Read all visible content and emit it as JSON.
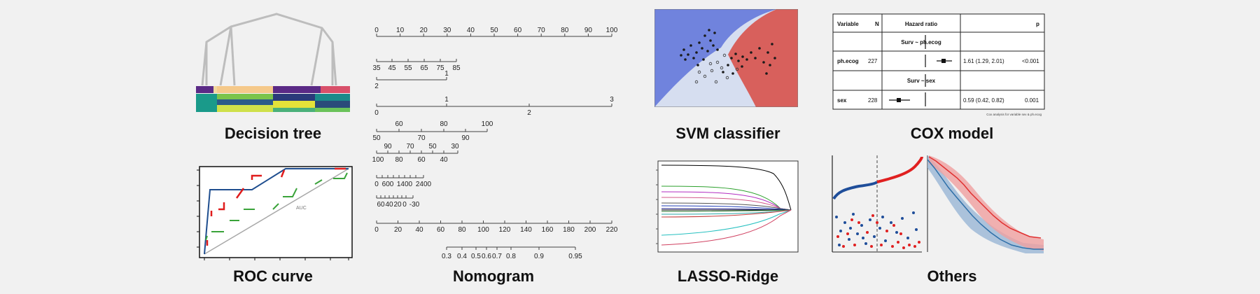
{
  "captions": {
    "decision_tree": "Decision tree",
    "nomogram": "Nomogram",
    "svm": "SVM classifier",
    "cox": "COX model",
    "roc": "ROC curve",
    "lasso": "LASSO-Ridge",
    "others": "Others"
  },
  "nomogram": {
    "scales": [
      {
        "labels": [
          "0",
          "10",
          "20",
          "30",
          "40",
          "50",
          "60",
          "70",
          "80",
          "90",
          "100"
        ]
      },
      {
        "labels": [
          "35",
          "45",
          "55",
          "65",
          "75",
          "85"
        ]
      },
      {
        "labels": [
          "1",
          "2"
        ]
      },
      {
        "labels": [
          "1",
          "3",
          "0",
          "2"
        ]
      },
      {
        "labels": [
          "60",
          "80",
          "100",
          "50",
          "70",
          "90"
        ]
      },
      {
        "labels": [
          "90",
          "70",
          "50",
          "30",
          "100",
          "80",
          "60",
          "40"
        ]
      },
      {
        "labels": [
          "0",
          "600",
          "1400",
          "2400"
        ]
      },
      {
        "labels": [
          "60",
          "40",
          "20",
          "0",
          "-30"
        ]
      },
      {
        "labels": [
          "0",
          "20",
          "40",
          "60",
          "80",
          "100",
          "120",
          "140",
          "160",
          "180",
          "200",
          "220"
        ]
      },
      {
        "labels": [
          "0.3",
          "0.4",
          "0.5",
          "0.6",
          "0.7",
          "0.8",
          "0.9",
          "0.95"
        ]
      }
    ]
  },
  "cox": {
    "headers": {
      "variable": "Variable",
      "n": "N",
      "hr": "Hazard ratio",
      "p": "p"
    },
    "groups": [
      {
        "title": "Surv ~ ph.ecog",
        "variable": "ph.ecog",
        "n": "227",
        "ci": "1.61 (1.29, 2.01)",
        "p": "<0.001"
      },
      {
        "title": "Surv ~ sex",
        "variable": "sex",
        "n": "228",
        "ci": "0.59 (0.42, 0.82)",
        "p": "0.001"
      }
    ],
    "footnote": "Cox analysis for variable sex & ph.ecog"
  },
  "roc": {
    "annotation": "AUC"
  },
  "colors": {
    "svm_blue": "#7083dd",
    "svm_red": "#d8605c",
    "svm_light": "#d6def0",
    "roc_blue": "#1f4e8f",
    "roc_red": "#e01c1c",
    "roc_green": "#3aa33a",
    "km_red": "#e03030",
    "km_blue": "#2e6fa8"
  }
}
